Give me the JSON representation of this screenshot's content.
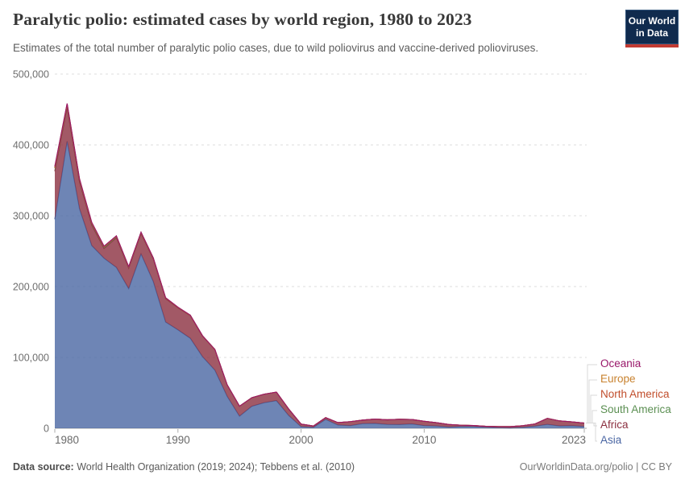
{
  "header": {
    "title": "Paralytic polio: estimated cases by world region, 1980 to 2023",
    "subtitle": "Estimates of the total number of paralytic polio cases, due to wild poliovirus and vaccine-derived polioviruses.",
    "logo": {
      "line1": "Our World",
      "line2": "in Data",
      "bg_color": "#102B4E",
      "stripe_color": "#C23A32"
    }
  },
  "footer": {
    "source_label": "Data source:",
    "source_text": " World Health Organization (2019; 2024); Tebbens et al. (2010)",
    "credit": "OurWorldinData.org/polio | CC BY"
  },
  "chart_data": {
    "type": "area",
    "stacked": true,
    "title": "Paralytic polio: estimated cases by world region, 1980 to 2023",
    "xlabel": "",
    "ylabel": "",
    "ylim": [
      0,
      500000
    ],
    "grid": {
      "horizontal": true,
      "style": "dashed"
    },
    "x": [
      1980,
      1981,
      1982,
      1983,
      1984,
      1985,
      1986,
      1987,
      1988,
      1989,
      1990,
      1991,
      1992,
      1993,
      1994,
      1995,
      1996,
      1997,
      1998,
      1999,
      2000,
      2001,
      2002,
      2003,
      2004,
      2005,
      2006,
      2007,
      2008,
      2009,
      2010,
      2011,
      2012,
      2013,
      2014,
      2015,
      2016,
      2017,
      2018,
      2019,
      2020,
      2021,
      2022,
      2023
    ],
    "yticks": [
      {
        "value": 0,
        "label": "0"
      },
      {
        "value": 100000,
        "label": "100,000"
      },
      {
        "value": 200000,
        "label": "200,000"
      },
      {
        "value": 300000,
        "label": "300,000"
      },
      {
        "value": 400000,
        "label": "400,000"
      },
      {
        "value": 500000,
        "label": "500,000"
      }
    ],
    "xticks": [
      {
        "value": 1980,
        "label": "1980",
        "align": "start"
      },
      {
        "value": 1990,
        "label": "1990",
        "align": "middle"
      },
      {
        "value": 2000,
        "label": "2000",
        "align": "middle"
      },
      {
        "value": 2010,
        "label": "2010",
        "align": "middle"
      },
      {
        "value": 2023,
        "label": "2023",
        "align": "end"
      }
    ],
    "series": [
      {
        "name": "Asia",
        "color": "#4A66A3",
        "values": [
          295000,
          405000,
          310000,
          258000,
          240000,
          227000,
          197000,
          246000,
          207000,
          150000,
          139000,
          127000,
          101000,
          82000,
          45000,
          17000,
          31000,
          36000,
          39000,
          18000,
          2300,
          1200,
          12500,
          4500,
          3800,
          6500,
          6800,
          5400,
          5200,
          6100,
          3800,
          3200,
          1700,
          2400,
          2400,
          1500,
          800,
          500,
          1200,
          2900,
          5500,
          3300,
          3500,
          2500
        ]
      },
      {
        "name": "Africa",
        "color": "#8B3040",
        "values": [
          68000,
          48000,
          38000,
          29000,
          14000,
          42000,
          29000,
          29000,
          32000,
          33000,
          31000,
          32000,
          29000,
          29000,
          16000,
          14000,
          12000,
          12000,
          12000,
          9000,
          3500,
          2000,
          2500,
          3400,
          5500,
          5000,
          6100,
          6500,
          7500,
          6300,
          6000,
          4600,
          3500,
          1900,
          1400,
          1200,
          1500,
          1800,
          2400,
          3100,
          8500,
          7000,
          5500,
          4800
        ]
      },
      {
        "name": "South America",
        "color": "#5B8F52",
        "values": [
          4000,
          3400,
          2800,
          2300,
          1900,
          1600,
          1300,
          1100,
          900,
          700,
          500,
          400,
          300,
          200,
          100,
          60,
          40,
          30,
          20,
          15,
          10,
          8,
          6,
          5,
          5,
          5,
          5,
          5,
          5,
          5,
          5,
          5,
          5,
          5,
          5,
          5,
          5,
          5,
          5,
          5,
          5,
          5,
          5,
          5
        ]
      },
      {
        "name": "North America",
        "color": "#C14E2C",
        "values": [
          500,
          420,
          350,
          300,
          250,
          210,
          180,
          150,
          120,
          100,
          80,
          60,
          50,
          40,
          30,
          20,
          15,
          10,
          8,
          6,
          5,
          4,
          3,
          3,
          3,
          3,
          3,
          3,
          3,
          3,
          3,
          3,
          3,
          3,
          3,
          3,
          3,
          3,
          3,
          3,
          3,
          3,
          3,
          3
        ]
      },
      {
        "name": "Europe",
        "color": "#C8822F",
        "values": [
          1800,
          1500,
          1200,
          1000,
          800,
          700,
          600,
          500,
          400,
          350,
          300,
          250,
          200,
          150,
          120,
          90,
          70,
          50,
          40,
          30,
          25,
          20,
          15,
          12,
          10,
          10,
          10,
          10,
          10,
          10,
          10,
          10,
          10,
          10,
          10,
          10,
          10,
          10,
          10,
          10,
          10,
          10,
          10,
          10
        ]
      },
      {
        "name": "Oceania",
        "color": "#99186A",
        "values": [
          80,
          70,
          60,
          50,
          45,
          40,
          35,
          30,
          25,
          20,
          15,
          12,
          10,
          8,
          6,
          5,
          4,
          3,
          3,
          2,
          2,
          1,
          1,
          1,
          1,
          1,
          1,
          1,
          1,
          1,
          1,
          1,
          1,
          1,
          1,
          1,
          1,
          1,
          1,
          1,
          1,
          1,
          1,
          1
        ]
      }
    ],
    "legend": {
      "position": "right",
      "labels_top_to_bottom": [
        "Oceania",
        "Europe",
        "North America",
        "South America",
        "Africa",
        "Asia"
      ]
    }
  }
}
